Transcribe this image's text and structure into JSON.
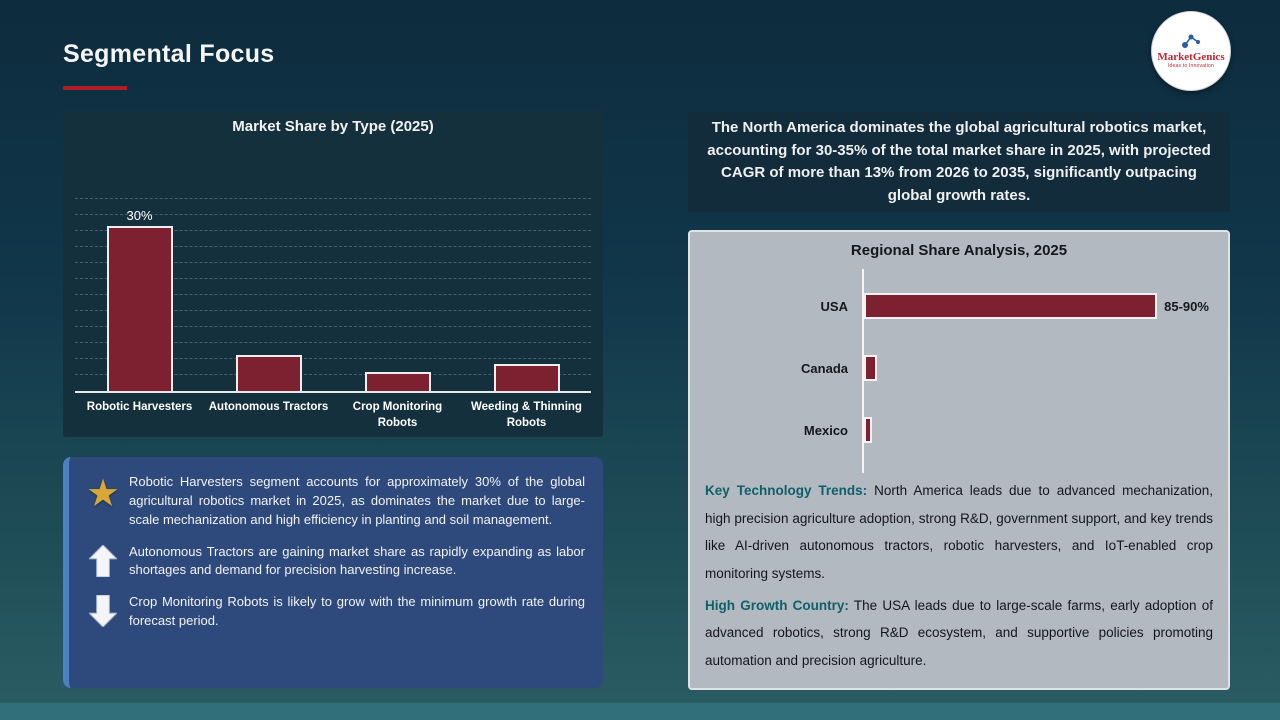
{
  "slide": {
    "title": "Segmental Focus",
    "logo_brand": "MarketGenics",
    "logo_tagline": "Ideas to Innovation"
  },
  "headline": {
    "text": "The North America dominates the global agricultural robotics market, accounting for 30-35% of the total market share in 2025, with projected CAGR of more than 13% from 2026 to 2035, significantly outpacing global growth rates."
  },
  "insights": {
    "items": [
      {
        "icon": "star-icon",
        "text": "Robotic Harvesters segment accounts for approximately 30% of the global agricultural robotics market in 2025, as dominates the market due to large-scale mechanization and high efficiency in planting and soil management."
      },
      {
        "icon": "up-arrow-icon",
        "text": "Autonomous Tractors are gaining market share as rapidly expanding as labor shortages and demand for precision harvesting increase."
      },
      {
        "icon": "down-arrow-icon",
        "text": "Crop Monitoring Robots is likely to grow with the minimum growth rate during forecast period."
      }
    ]
  },
  "regional": {
    "paragraphs": [
      {
        "label": "Key Technology Trends:",
        "text": " North America leads due to advanced mechanization, high precision agriculture adoption, strong R&D, government support, and key trends like AI-driven autonomous tractors, robotic harvesters, and IoT-enabled crop monitoring systems."
      },
      {
        "label": "High Growth Country:",
        "text": " The USA leads due to large-scale farms, early adoption of advanced robotics, strong R&D ecosystem, and supportive policies promoting automation and precision agriculture."
      }
    ]
  },
  "colors": {
    "accent_red": "#b01e28",
    "bar_maroon": "#7d2130",
    "insight_blue": "#2e4a7c",
    "teal_lead": "#0f5f6b",
    "gray_panel": "#b3b9c1"
  },
  "chart_data": [
    {
      "type": "bar",
      "title": "Market Share by Type (2025)",
      "categories": [
        "Robotic Harvesters",
        "Autonomous Tractors",
        "Crop Monitoring Robots",
        "Weeding & Thinning Robots"
      ],
      "values": [
        30,
        6.5,
        3.5,
        5
      ],
      "value_labels": [
        "30%",
        "",
        "",
        ""
      ],
      "ylim": [
        0,
        45
      ],
      "grid": "dashed-horizontal",
      "bar_color": "#7d2130",
      "legend": "none"
    },
    {
      "type": "bar",
      "orientation": "horizontal",
      "title": "Regional Share Analysis, 2025",
      "categories": [
        "USA",
        "Canada",
        "Mexico"
      ],
      "values": [
        87.5,
        4,
        2.5
      ],
      "value_labels": [
        "85-90%",
        "",
        ""
      ],
      "bar_color": "#7d2130",
      "legend": "none"
    }
  ]
}
